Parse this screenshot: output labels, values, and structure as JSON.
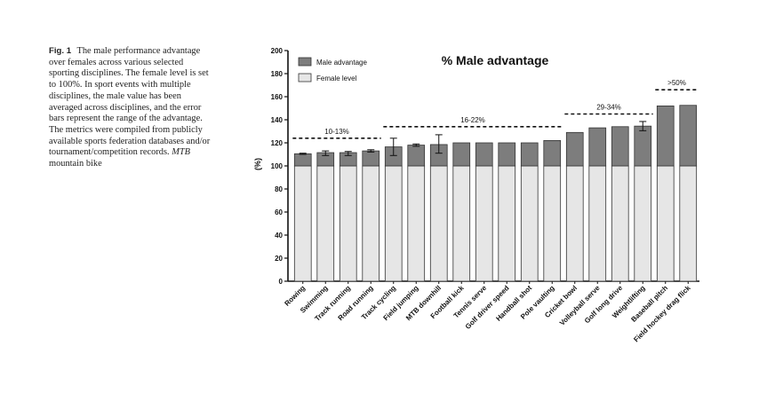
{
  "caption": {
    "label": "Fig. 1",
    "text_main": "The male performance advantage over females across various selected sporting disciplines. The female level is set to 100%. In sport events with multiple disciplines, the male value has been averaged across disciplines, and the error bars represent the range of the advantage. The metrics were compiled from publicly available sports federation databases and/or tournament/competition records.",
    "abbrev": "MTB",
    "abbrev_expansion": "mountain bike"
  },
  "chart_data": {
    "type": "bar",
    "stacked": true,
    "title": "% Male advantage",
    "ylabel": "(%)",
    "xlabel": "",
    "ylim": [
      0,
      200
    ],
    "yticks": [
      0,
      20,
      40,
      60,
      80,
      100,
      120,
      140,
      160,
      180,
      200
    ],
    "grid": false,
    "legend_position": "top-left",
    "categories": [
      "Rowing",
      "Swimming",
      "Track running",
      "Road running",
      "Track cycling",
      "Field jumping",
      "MTB downhill",
      "Football kick",
      "Tennis serve",
      "Golf driver speed",
      "Handball shot",
      "Pole vaulting",
      "Cricket bowl",
      "Volleyball serve",
      "Golf long drive",
      "Weightlifting",
      "Baseball pitch",
      "Field hockey drag flick"
    ],
    "series": [
      {
        "name": "Female level",
        "color": "#e6e6e6",
        "values": [
          100,
          100,
          100,
          100,
          100,
          100,
          100,
          100,
          100,
          100,
          100,
          100,
          100,
          100,
          100,
          100,
          100,
          100
        ]
      },
      {
        "name": "Male advantage",
        "color": "#7d7d7d",
        "values": [
          10.5,
          11.5,
          11.5,
          13,
          16.5,
          18,
          18.5,
          20,
          20,
          20,
          20,
          22,
          29,
          33,
          34,
          34.5,
          52,
          52.5
        ]
      }
    ],
    "error_bars": [
      {
        "category": "Rowing",
        "low": 110,
        "high": 111
      },
      {
        "category": "Swimming",
        "low": 109,
        "high": 113
      },
      {
        "category": "Track running",
        "low": 109,
        "high": 112.5
      },
      {
        "category": "Road running",
        "low": 112,
        "high": 114
      },
      {
        "category": "Track cycling",
        "low": 109,
        "high": 124
      },
      {
        "category": "Field jumping",
        "low": 117,
        "high": 119
      },
      {
        "category": "MTB downhill",
        "low": 111,
        "high": 127
      },
      {
        "category": "Weightlifting",
        "low": 130.5,
        "high": 138.5
      }
    ],
    "annotations": [
      {
        "text": "10-13%",
        "from": "Rowing",
        "to": "Road running",
        "y": 124
      },
      {
        "text": "16-22%",
        "from": "Track cycling",
        "to": "Pole vaulting",
        "y": 134
      },
      {
        "text": "29-34%",
        "from": "Cricket bowl",
        "to": "Weightlifting",
        "y": 145
      },
      {
        "text": ">50%",
        "from": "Baseball pitch",
        "to": "Field hockey drag flick",
        "y": 166
      }
    ]
  }
}
